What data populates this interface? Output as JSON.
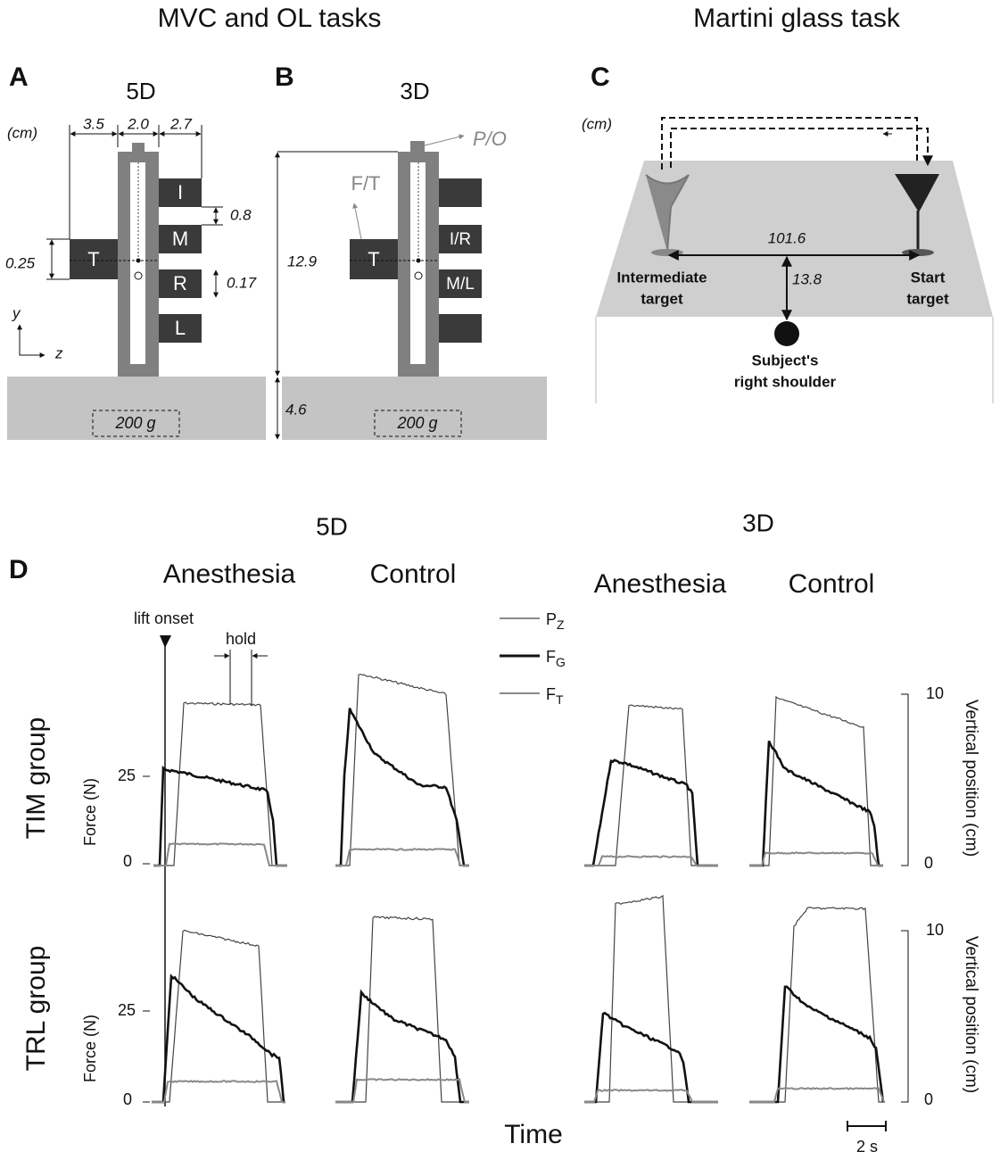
{
  "headings": [
    "MVC and OL tasks",
    "Martini glass task"
  ],
  "panel_a": {
    "label": "A",
    "title": "5D",
    "unit": "(cm)",
    "dimensions": [
      "3.5",
      "2.0",
      "2.7",
      "0.8",
      "0.25",
      "0.17"
    ],
    "fingers": [
      "T",
      "I",
      "M",
      "R",
      "L"
    ],
    "axes": [
      "y",
      "z"
    ],
    "weight": "200 g"
  },
  "panel_b": {
    "label": "B",
    "title": "3D",
    "sensor": "P/O",
    "force_sensor": "F/T",
    "dimensions": [
      "12.9",
      "4.6"
    ],
    "fingers": [
      "T",
      "I/R",
      "M/L"
    ],
    "weight": "200 g"
  },
  "panel_c": {
    "label": "C",
    "unit": "(cm)",
    "dimensions": [
      "101.6",
      "13.8"
    ],
    "intermediate_target": [
      "Intermediate",
      "target"
    ],
    "start_target": [
      "Start",
      "target"
    ],
    "shoulder": [
      "Subject's",
      "right shoulder"
    ]
  },
  "panel_d": {
    "label": "D",
    "groups": [
      "5D",
      "3D"
    ],
    "conditions": [
      "Anesthesia",
      "Control",
      "Anesthesia",
      "Control"
    ],
    "rows": [
      "TIM group",
      "TRL group"
    ],
    "annotations": [
      "lift onset",
      "hold"
    ],
    "legend": [
      {
        "base": "P",
        "sub": "Z"
      },
      {
        "base": "F",
        "sub": "G"
      },
      {
        "base": "F",
        "sub": "T"
      }
    ],
    "force_axis": {
      "label": "Force (N)",
      "ticks": [
        "0",
        "25"
      ]
    },
    "position_axis": {
      "label": "Vertical position (cm)",
      "ticks": [
        "0",
        "10"
      ]
    },
    "x_label": "Time",
    "scale_bar": "2 s"
  }
}
